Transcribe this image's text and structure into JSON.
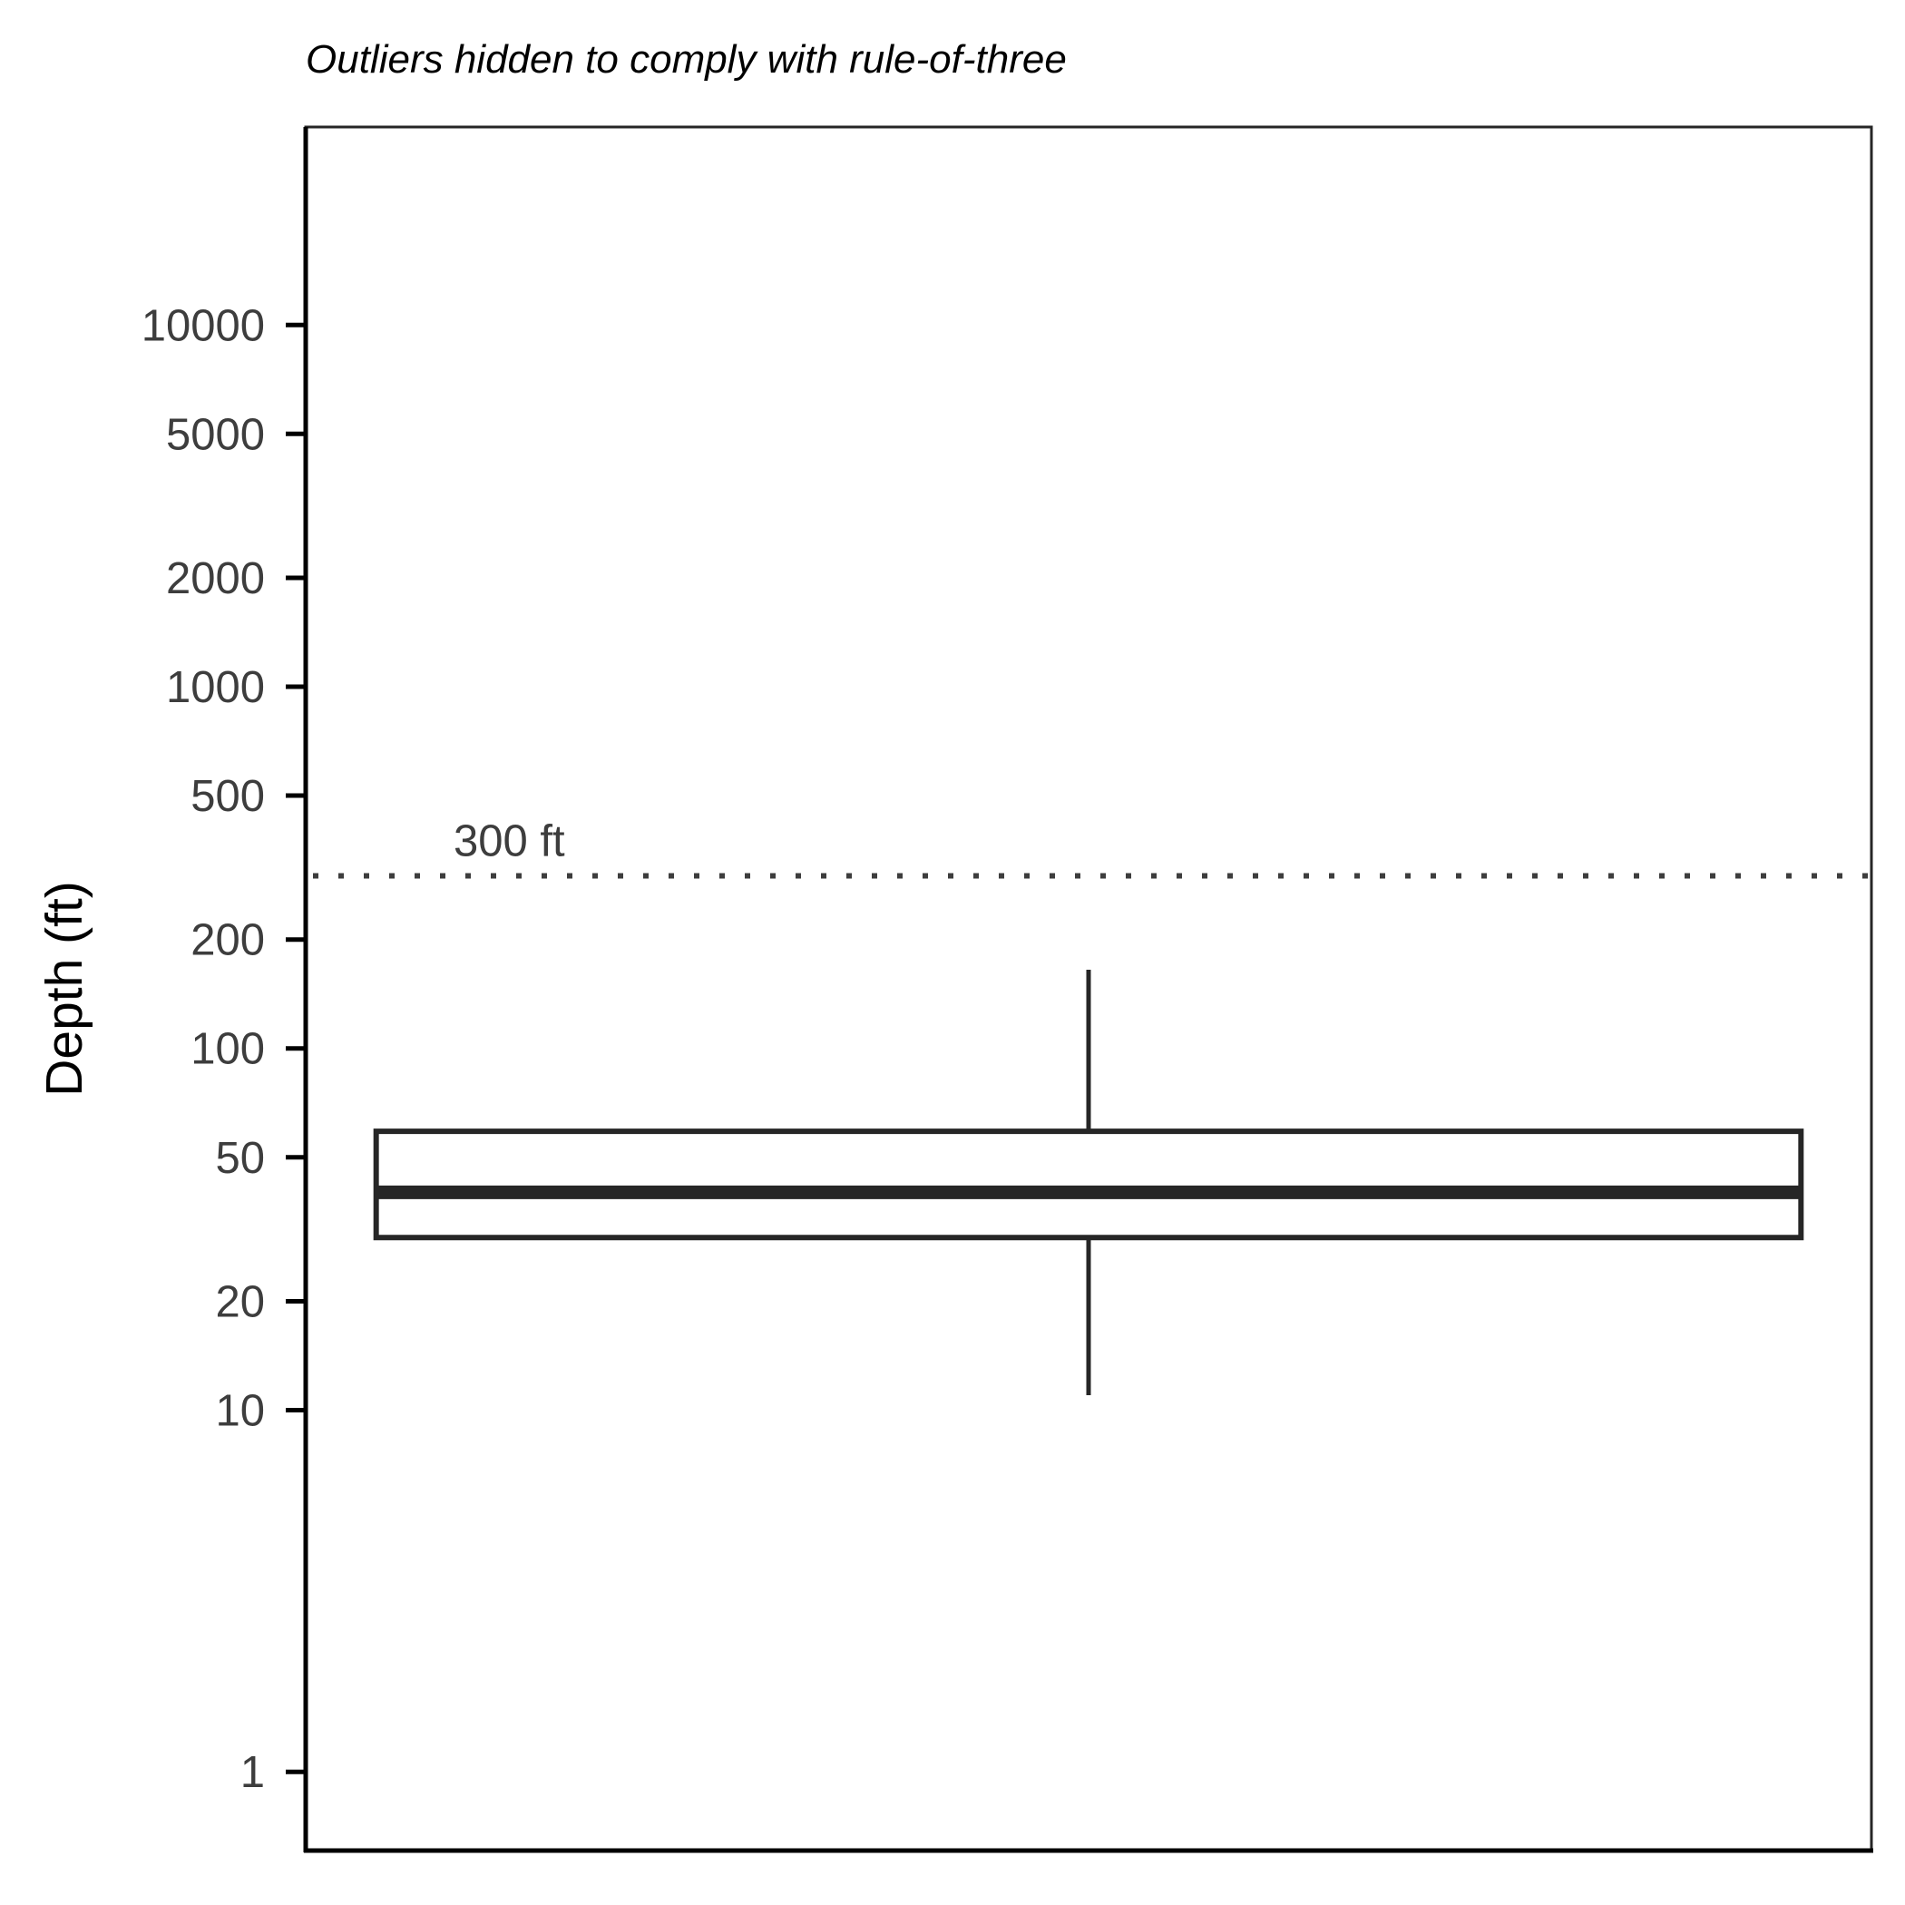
{
  "chart_data": {
    "type": "box",
    "subtitle": "Outliers hidden to comply with rule-of-three",
    "title": "",
    "xlabel": "",
    "ylabel": "Depth (ft)",
    "yscale": "log10",
    "ylim": [
      0.7,
      30000
    ],
    "yticks": [
      1,
      10,
      20,
      50,
      100,
      200,
      500,
      1000,
      2000,
      5000,
      10000
    ],
    "ytick_labels": [
      "1",
      "10",
      "20",
      "50",
      "100",
      "200",
      "500",
      "1000",
      "2000",
      "5000",
      "10000"
    ],
    "boxes": [
      {
        "whisker_low": 11,
        "q1": 30,
        "median": 40,
        "q3": 59,
        "whisker_high": 165
      }
    ],
    "reference_line": {
      "value": 300,
      "label": "300 ft",
      "style": "dotted"
    },
    "outliers_shown": false,
    "grid": false,
    "colors": {
      "box_stroke": "#262626",
      "box_fill": "#ffffff",
      "axis": "#000000",
      "reference_line": "#3d3d3d"
    }
  }
}
